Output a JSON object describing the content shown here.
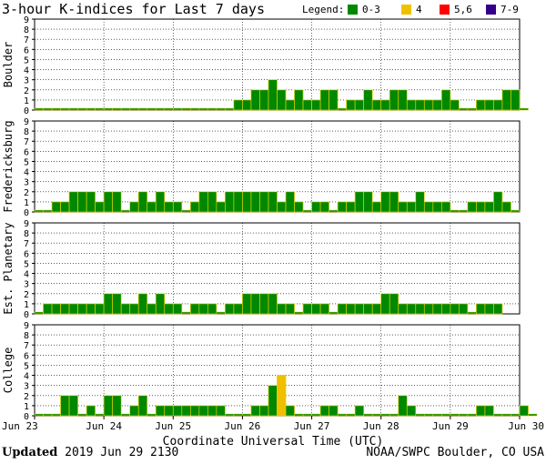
{
  "chart_data": {
    "type": "bar",
    "title": "3-hour K-indices for Last 7 days",
    "legend": {
      "label": "Legend:",
      "placement": "top-right",
      "entries": [
        {
          "label": "0-3",
          "color": "#008800"
        },
        {
          "label": "4",
          "color": "#f0c000"
        },
        {
          "label": "5,6",
          "color": "#ff0000"
        },
        {
          "label": "7-9",
          "color": "#330088"
        }
      ]
    },
    "xlabel": "Coordinate Universal Time (UTC)",
    "x_tick_labels": [
      "Jun 23",
      "Jun 24",
      "Jun 25",
      "Jun 26",
      "Jun 27",
      "Jun 28",
      "Jun 29",
      "Jun 30"
    ],
    "intervals_per_day": 8,
    "ylim": [
      0,
      9
    ],
    "y_tick_labels": [
      "0",
      "1",
      "2",
      "3",
      "4",
      "5",
      "6",
      "7",
      "8",
      "9"
    ],
    "grid": true,
    "panels": [
      {
        "name": "Boulder",
        "values": [
          0,
          0,
          0,
          0,
          0,
          0,
          0,
          0,
          0,
          0,
          0,
          0,
          0,
          0,
          0,
          0,
          0,
          0,
          0,
          0,
          0,
          0,
          0,
          1,
          1,
          2,
          2,
          3,
          2,
          1,
          2,
          1,
          1,
          2,
          2,
          0,
          1,
          1,
          2,
          1,
          1,
          2,
          2,
          1,
          1,
          1,
          1,
          2,
          1,
          0,
          0,
          1,
          1,
          1,
          2,
          2,
          0
        ]
      },
      {
        "name": "Fredericksburg",
        "values": [
          0,
          0,
          1,
          1,
          2,
          2,
          2,
          1,
          2,
          2,
          0,
          1,
          2,
          1,
          2,
          1,
          1,
          0,
          1,
          2,
          2,
          1,
          2,
          2,
          2,
          2,
          2,
          2,
          1,
          2,
          1,
          0,
          1,
          1,
          0,
          1,
          1,
          2,
          2,
          1,
          2,
          2,
          1,
          1,
          2,
          1,
          1,
          1,
          0,
          0,
          1,
          1,
          1,
          2,
          1,
          0
        ]
      },
      {
        "name": "Est. Planetary",
        "values": [
          0,
          1,
          1,
          1,
          1,
          1,
          1,
          1,
          2,
          2,
          1,
          1,
          2,
          1,
          2,
          1,
          1,
          0,
          1,
          1,
          1,
          0,
          1,
          1,
          2,
          2,
          2,
          2,
          1,
          1,
          0,
          1,
          1,
          1,
          0,
          1,
          1,
          1,
          1,
          1,
          2,
          2,
          1,
          1,
          1,
          1,
          1,
          1,
          1,
          1,
          0,
          1,
          1,
          1
        ]
      },
      {
        "name": "College",
        "values": [
          0,
          0,
          0,
          2,
          2,
          0,
          1,
          0,
          2,
          2,
          0,
          1,
          2,
          0,
          1,
          1,
          1,
          1,
          1,
          1,
          1,
          1,
          0,
          0,
          0,
          1,
          1,
          3,
          4,
          1,
          0,
          0,
          0,
          1,
          1,
          0,
          0,
          1,
          0,
          0,
          0,
          0,
          2,
          1,
          0,
          0,
          0,
          0,
          0,
          0,
          0,
          1,
          1,
          0,
          0,
          0,
          1,
          0
        ]
      }
    ]
  },
  "footer": {
    "updated_label": "Updated",
    "updated_value": "2019 Jun 29 2130",
    "credit": "NOAA/SWPC Boulder, CO USA"
  }
}
